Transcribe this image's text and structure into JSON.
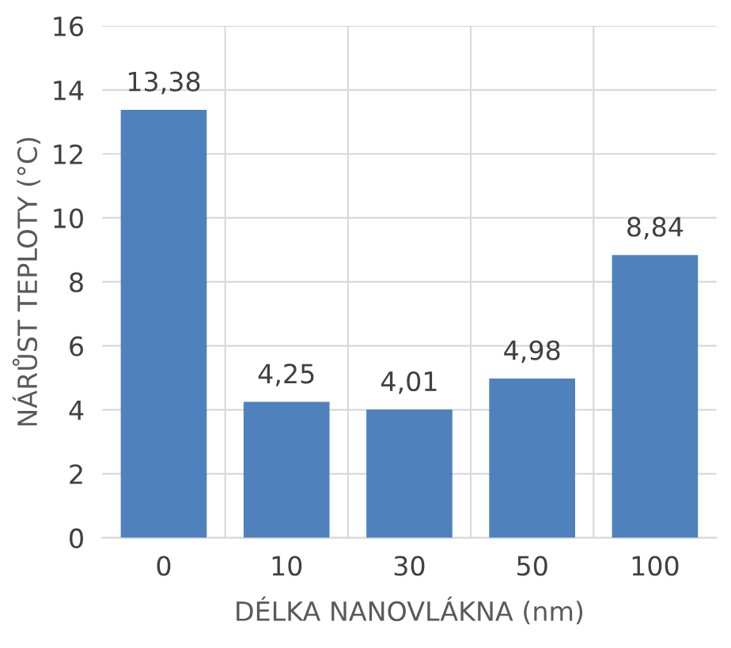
{
  "chart_data": {
    "type": "bar",
    "xlabel": "DÉLKA NANOVLÁKNA (nm)",
    "ylabel": "NÁRŮST TEPLOTY (°C)",
    "categories": [
      "0",
      "10",
      "30",
      "50",
      "100"
    ],
    "values": [
      13.38,
      4.25,
      4.01,
      4.98,
      8.84
    ],
    "value_labels": [
      "13,38",
      "4,25",
      "4,01",
      "4,98",
      "8,84"
    ],
    "color": "#4f81bd",
    "ylim": [
      0,
      16
    ],
    "yticks": [
      0,
      2,
      4,
      6,
      8,
      10,
      12,
      14,
      16
    ],
    "grid": true
  }
}
